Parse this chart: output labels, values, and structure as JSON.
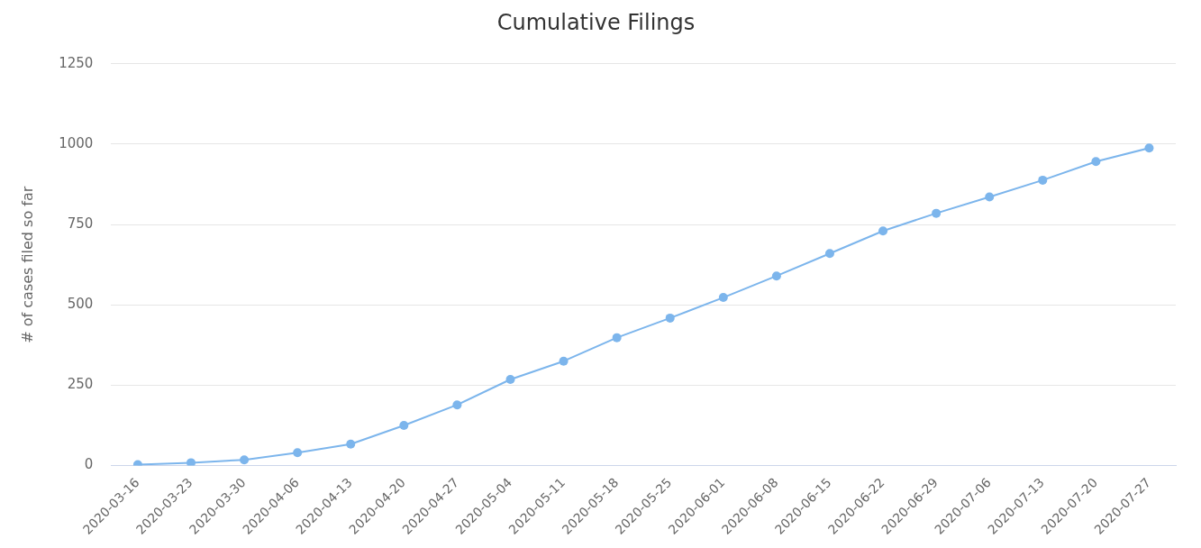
{
  "chart_data": {
    "type": "line",
    "title": "Cumulative Filings",
    "ylabel": "# of cases filed so far",
    "categories": [
      "2020-03-16",
      "2020-03-23",
      "2020-03-30",
      "2020-04-06",
      "2020-04-13",
      "2020-04-20",
      "2020-04-27",
      "2020-05-04",
      "2020-05-11",
      "2020-05-18",
      "2020-05-25",
      "2020-06-01",
      "2020-06-08",
      "2020-06-15",
      "2020-06-22",
      "2020-06-29",
      "2020-07-06",
      "2020-07-13",
      "2020-07-20",
      "2020-07-27"
    ],
    "series": [
      {
        "color": "#7cb5ec",
        "values": [
          3,
          9,
          18,
          40,
          67,
          125,
          189,
          268,
          325,
          398,
          459,
          523,
          590,
          660,
          730,
          785,
          836,
          888,
          946,
          988
        ]
      }
    ],
    "ylim": [
      0,
      1250
    ],
    "yticks": [
      0,
      250,
      500,
      750,
      1000,
      1250
    ],
    "grid": "y",
    "legend": false,
    "marker": "circle",
    "line_style": "solid"
  }
}
